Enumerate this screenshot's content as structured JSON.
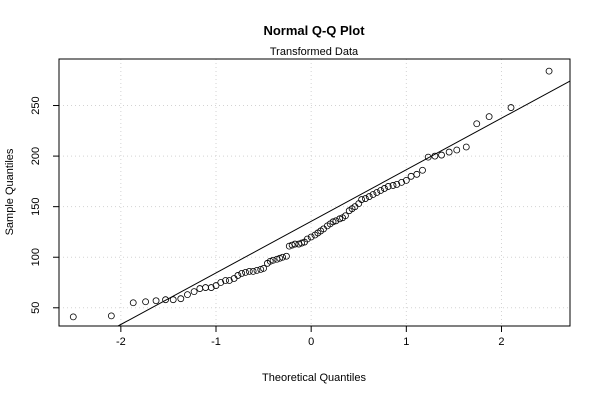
{
  "chart_data": {
    "type": "scatter",
    "title": "Normal Q-Q Plot",
    "subtitle": "Transformed Data",
    "xlabel": "Theoretical Quantiles",
    "ylabel": "Sample Quantiles",
    "xlim": [
      -2.65,
      2.72
    ],
    "ylim": [
      32,
      296
    ],
    "xticks": [
      -2,
      -1,
      0,
      1,
      2
    ],
    "yticks": [
      50,
      100,
      150,
      200,
      250
    ],
    "grid": true,
    "reference_line": {
      "intercept": 135.5,
      "slope": 51
    },
    "points": {
      "x": [
        -2.5,
        -2.1,
        -1.87,
        -1.74,
        -1.63,
        -1.53,
        -1.45,
        -1.37,
        -1.3,
        -1.23,
        -1.17,
        -1.11,
        -1.05,
        -1.0,
        -0.95,
        -0.9,
        -0.86,
        -0.81,
        -0.77,
        -0.73,
        -0.69,
        -0.65,
        -0.61,
        -0.57,
        -0.53,
        -0.5,
        -0.46,
        -0.43,
        -0.4,
        -0.36,
        -0.33,
        -0.3,
        -0.26,
        -0.23,
        -0.2,
        -0.17,
        -0.13,
        -0.1,
        -0.07,
        -0.04,
        0.0,
        0.04,
        0.07,
        0.1,
        0.13,
        0.17,
        0.2,
        0.23,
        0.26,
        0.3,
        0.33,
        0.36,
        0.4,
        0.43,
        0.46,
        0.5,
        0.53,
        0.57,
        0.61,
        0.65,
        0.69,
        0.73,
        0.77,
        0.81,
        0.86,
        0.9,
        0.95,
        1.0,
        1.05,
        1.11,
        1.17,
        1.23,
        1.3,
        1.37,
        1.45,
        1.53,
        1.63,
        1.74,
        1.87,
        2.1,
        2.5
      ],
      "y": [
        41,
        42,
        55,
        56,
        57,
        58,
        58,
        59,
        63,
        66,
        69,
        70,
        70,
        72,
        75,
        77,
        77,
        79,
        82,
        84,
        85,
        86,
        86,
        87,
        88,
        89,
        94,
        96,
        97,
        98,
        99,
        100,
        101,
        111,
        112,
        113,
        113,
        114,
        115,
        118,
        120,
        122,
        124,
        126,
        128,
        131,
        133,
        135,
        136,
        138,
        139,
        141,
        146,
        148,
        150,
        153,
        157,
        158,
        160,
        162,
        164,
        166,
        168,
        170,
        171,
        172,
        174,
        176,
        180,
        182,
        186,
        199,
        200,
        201,
        204,
        206,
        209,
        232,
        239,
        248,
        284
      ]
    }
  }
}
